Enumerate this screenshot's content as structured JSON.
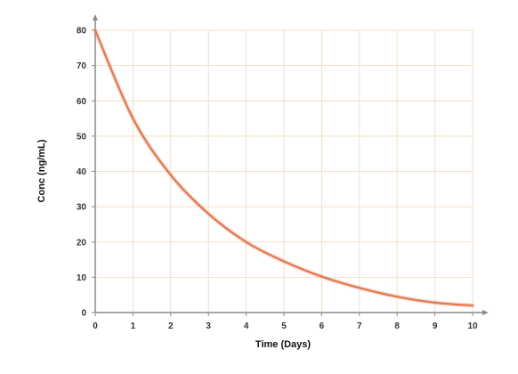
{
  "chart_data": {
    "type": "line",
    "title": "",
    "xlabel": "Time (Days)",
    "ylabel": "Conc (ng/mL)",
    "xlim": [
      0,
      10
    ],
    "ylim": [
      0,
      80
    ],
    "x_ticks": [
      0,
      1,
      2,
      3,
      4,
      5,
      6,
      7,
      8,
      9,
      10
    ],
    "y_ticks": [
      0,
      10,
      20,
      30,
      40,
      50,
      60,
      70,
      80
    ],
    "grid": true,
    "legend": "none",
    "series": [
      {
        "x": [
          0,
          1,
          2,
          3,
          4,
          5,
          6,
          7,
          8,
          9,
          10
        ],
        "values": [
          80,
          55,
          39,
          28,
          20,
          14.5,
          10.2,
          7,
          4.5,
          2.8,
          2
        ],
        "color": "#e07850"
      }
    ],
    "colors": {
      "grid": "#f3dfc4",
      "axis": "#8a8a8a",
      "line": "#e07850"
    }
  }
}
